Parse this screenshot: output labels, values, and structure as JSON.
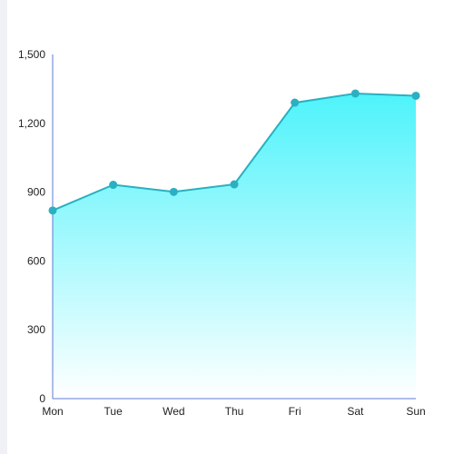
{
  "chart_data": {
    "type": "area",
    "title": "",
    "xlabel": "",
    "ylabel": "",
    "categories": [
      "Mon",
      "Tue",
      "Wed",
      "Thu",
      "Fri",
      "Sat",
      "Sun"
    ],
    "series": [
      {
        "values": [
          820,
          932,
          901,
          934,
          1290,
          1330,
          1320
        ]
      }
    ],
    "ylim": [
      0,
      1500
    ],
    "yticks": [
      0,
      300,
      600,
      900,
      1200,
      1500
    ],
    "ytick_labels": [
      "0",
      "300",
      "600",
      "900",
      "1,200",
      "1,500"
    ],
    "grid": false,
    "legend": "none",
    "colors": {
      "line": "#2ab0c0",
      "marker": "#2ab0c0",
      "area_top": "#4ef3fb",
      "area_bottom": "#ffffff",
      "axis": "#5b7bd5"
    }
  }
}
